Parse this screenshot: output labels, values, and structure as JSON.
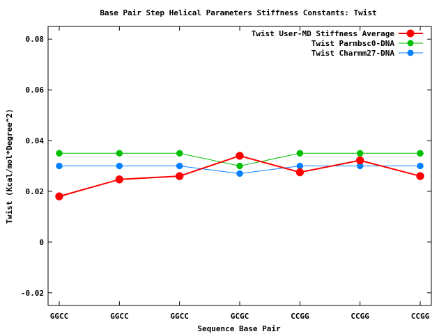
{
  "chart_data": {
    "type": "line",
    "title": "Base Pair Step Helical Parameters Stiffness Constants: Twist",
    "xlabel": "Sequence Base Pair",
    "ylabel": "Twist (Kcal/mol*Degree^2)",
    "categories": [
      "GGCC",
      "GGCC",
      "GGCC",
      "GCGC",
      "CCGG",
      "CCGG",
      "CCGG"
    ],
    "ylim": [
      -0.025,
      0.085
    ],
    "yticks": [
      -0.02,
      0,
      0.02,
      0.04,
      0.06,
      0.08
    ],
    "ytick_labels": [
      "-0.02",
      "0",
      "0.02",
      "0.04",
      "0.06",
      "0.08"
    ],
    "grid": false,
    "legend_position": "top-right",
    "series": [
      {
        "name": "Twist User-MD Stiffness Average",
        "color": "#ff0000",
        "values": [
          0.018,
          0.0247,
          0.026,
          0.034,
          0.0275,
          0.0322,
          0.026
        ]
      },
      {
        "name": "Twist Parmbsc0-DNA",
        "color": "#00c000",
        "values": [
          0.035,
          0.035,
          0.035,
          0.03,
          0.035,
          0.035,
          0.035
        ]
      },
      {
        "name": "Twist Charmm27-DNA",
        "color": "#0080ff",
        "values": [
          0.03,
          0.03,
          0.03,
          0.027,
          0.03,
          0.03,
          0.03
        ]
      }
    ]
  }
}
